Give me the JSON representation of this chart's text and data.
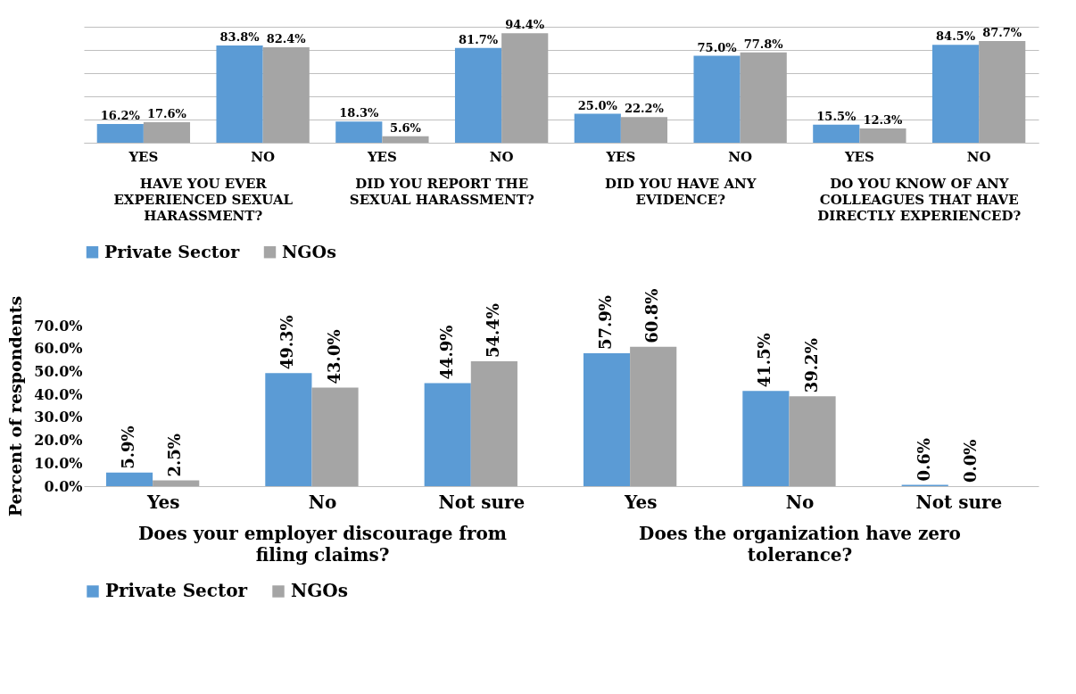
{
  "chart_data": [
    {
      "type": "bar",
      "categories": [
        "YES",
        "NO",
        "YES",
        "NO",
        "YES",
        "NO",
        "YES",
        "NO"
      ],
      "annotations": [
        "HAVE YOU EVER EXPERIENCED SEXUAL HARASSMENT?",
        "DID YOU REPORT THE SEXUAL HARASSMENT?",
        "DID YOU HAVE ANY EVIDENCE?",
        "DO YOU KNOW OF ANY COLLEAGUES THAT HAVE DIRECTLY EXPERIENCED?"
      ],
      "series": [
        {
          "name": "Private Sector",
          "color": "#5b9bd5",
          "values": [
            16.2,
            83.8,
            18.3,
            81.7,
            25.0,
            75.0,
            15.5,
            84.5
          ],
          "value_labels": [
            "16.2%",
            "83.8%",
            "18.3%",
            "81.7%",
            "25.0%",
            "75.0%",
            "15.5%",
            "84.5%"
          ]
        },
        {
          "name": "NGOs",
          "color": "#a5a5a5",
          "values": [
            17.6,
            82.4,
            5.6,
            94.4,
            22.2,
            77.8,
            12.3,
            87.7
          ],
          "value_labels": [
            "17.6%",
            "82.4%",
            "5.6%",
            "94.4%",
            "22.2%",
            "77.8%",
            "12.3%",
            "87.7%"
          ]
        }
      ],
      "tick_labels": "x",
      "grid": true,
      "legend": "bottom"
    },
    {
      "type": "bar",
      "categories": [
        "Yes",
        "No",
        "Not sure",
        "Yes",
        "No",
        "Not sure"
      ],
      "annotations": [
        "Does your employer discourage from filing claims?",
        "Does the organization have zero tolerance?"
      ],
      "ylabel": "Percent of respondents",
      "series": [
        {
          "name": "Private Sector",
          "color": "#5b9bd5",
          "values": [
            5.9,
            49.3,
            44.9,
            57.9,
            41.5,
            0.6
          ],
          "value_labels": [
            "5.9%",
            "49.3%",
            "44.9%",
            "57.9%",
            "41.5%",
            "0.6%"
          ]
        },
        {
          "name": "NGOs",
          "color": "#a5a5a5",
          "values": [
            2.5,
            43.0,
            54.4,
            60.8,
            39.2,
            0.0
          ],
          "value_labels": [
            "2.5%",
            "43.0%",
            "54.4%",
            "60.8%",
            "39.2%",
            "0.0%"
          ]
        }
      ],
      "ylim": [
        0,
        70
      ],
      "yticks": [
        {
          "value": 0,
          "label": "0.0%"
        },
        {
          "value": 10,
          "label": "10.0%"
        },
        {
          "value": 20,
          "label": "20.0%"
        },
        {
          "value": 30,
          "label": "30.0%"
        },
        {
          "value": 40,
          "label": "40.0%"
        },
        {
          "value": 50,
          "label": "50.0%"
        },
        {
          "value": 60,
          "label": "60.0%"
        },
        {
          "value": 70,
          "label": "70.0%"
        }
      ],
      "legend": "bottom"
    }
  ]
}
